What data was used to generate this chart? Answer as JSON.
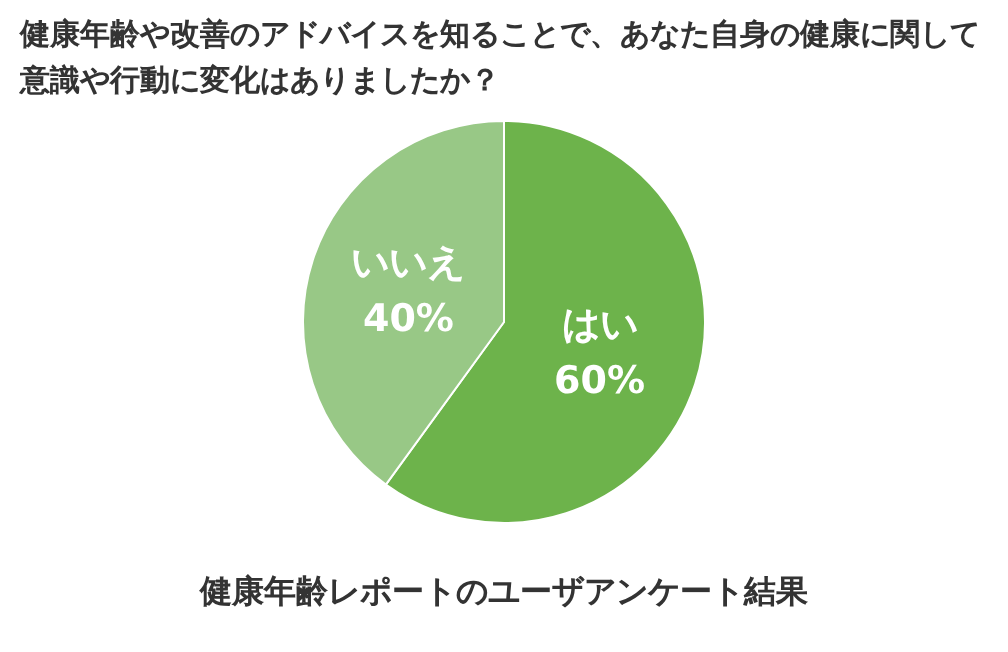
{
  "chart_data": {
    "type": "pie",
    "title": "健康年齢や改善のアドバイスを知ることで、あなた自身の健康に関して意識や行動に変化はありましたか？",
    "categories": [
      "はい",
      "いいえ"
    ],
    "values": [
      60,
      40
    ],
    "colors": [
      "#6db34b",
      "#98c886"
    ],
    "value_labels": [
      "60%",
      "40%"
    ],
    "legend": false,
    "annotations": [
      "健康年齢レポートのユーザアンケート結果"
    ]
  }
}
